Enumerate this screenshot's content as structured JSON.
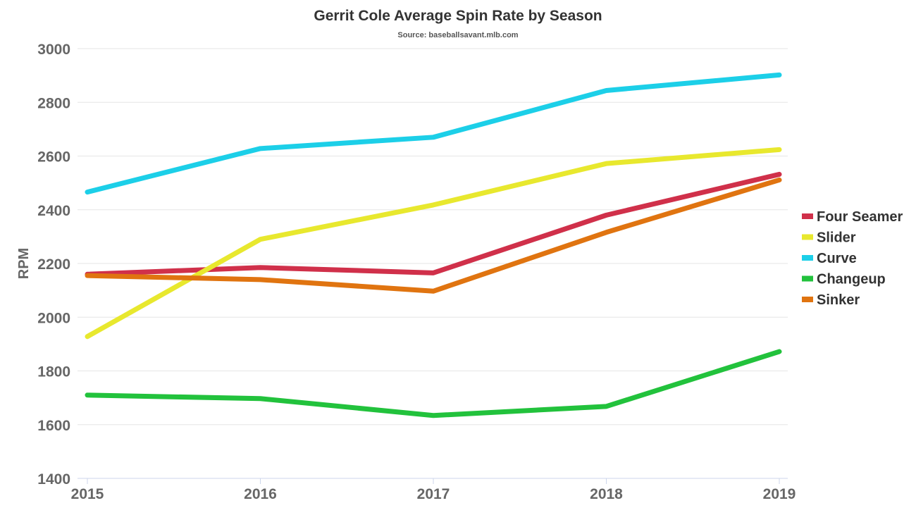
{
  "chart_data": {
    "type": "line",
    "title": "Gerrit Cole Average Spin Rate by Season",
    "subtitle": "Source: baseballsavant.mlb.com",
    "xlabel": "",
    "ylabel": "RPM",
    "categories": [
      "2015",
      "2016",
      "2017",
      "2018",
      "2019"
    ],
    "ylim": [
      1400,
      3000
    ],
    "yticks": [
      1400,
      1600,
      1800,
      2000,
      2200,
      2400,
      2600,
      2800,
      3000
    ],
    "grid": true,
    "legend_position": "right",
    "series": [
      {
        "name": "Four Seamer",
        "color": "#d0304a",
        "values": [
          2160,
          2185,
          2165,
          2380,
          2532
        ]
      },
      {
        "name": "Slider",
        "color": "#e8e82e",
        "values": [
          1928,
          2290,
          2418,
          2572,
          2624
        ]
      },
      {
        "name": "Curve",
        "color": "#1ccfe8",
        "values": [
          2466,
          2628,
          2670,
          2844,
          2902
        ]
      },
      {
        "name": "Changeup",
        "color": "#22c23c",
        "values": [
          1710,
          1697,
          1634,
          1668,
          1872
        ]
      },
      {
        "name": "Sinker",
        "color": "#e07410",
        "values": [
          2155,
          2140,
          2097,
          2316,
          2511
        ]
      }
    ]
  }
}
